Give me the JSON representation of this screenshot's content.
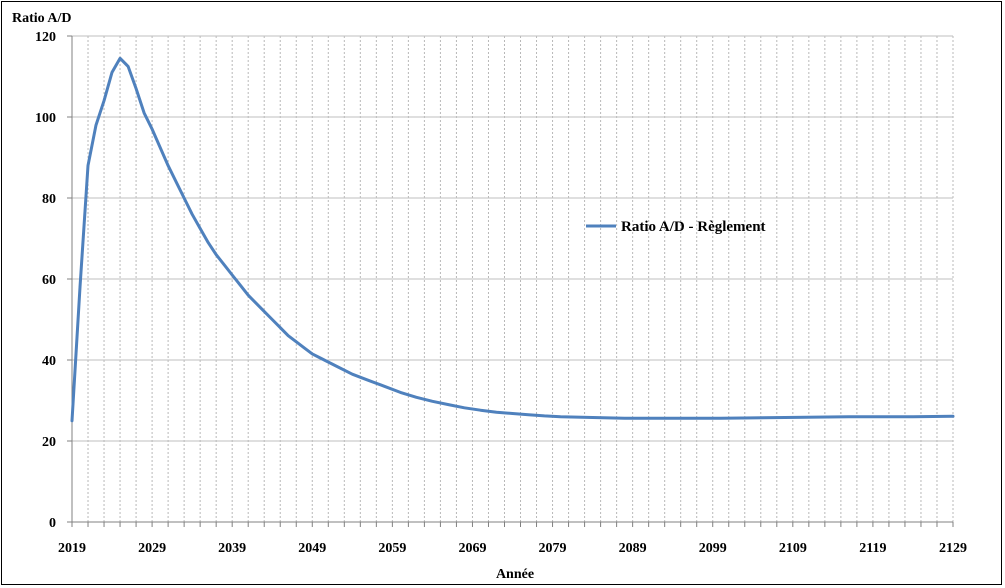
{
  "chart_data": {
    "type": "line",
    "title": "",
    "ylabel": "Ratio A/D",
    "xlabel": "Année",
    "xlim": [
      2019,
      2129
    ],
    "ylim": [
      0,
      120
    ],
    "x_ticks": [
      2019,
      2029,
      2039,
      2049,
      2059,
      2069,
      2079,
      2089,
      2099,
      2109,
      2119,
      2129
    ],
    "y_ticks": [
      0,
      20,
      40,
      60,
      80,
      100,
      120
    ],
    "grid": true,
    "legend_position": "center-right",
    "series": [
      {
        "name": "Ratio A/D - Règlement",
        "color": "#4F81BD",
        "x": [
          2019,
          2020,
          2021,
          2022,
          2023,
          2024,
          2025,
          2026,
          2027,
          2028,
          2029,
          2030,
          2031,
          2032,
          2033,
          2034,
          2035,
          2036,
          2037,
          2038,
          2039,
          2040,
          2041,
          2042,
          2043,
          2044,
          2045,
          2046,
          2047,
          2048,
          2049,
          2050,
          2052,
          2054,
          2056,
          2058,
          2060,
          2062,
          2064,
          2066,
          2068,
          2070,
          2072,
          2074,
          2076,
          2078,
          2080,
          2084,
          2088,
          2092,
          2096,
          2100,
          2104,
          2108,
          2112,
          2116,
          2120,
          2124,
          2129
        ],
        "y": [
          25,
          58,
          88,
          98,
          104,
          111,
          114.5,
          112.5,
          107,
          101,
          97,
          92.5,
          88,
          84,
          80,
          76,
          72.5,
          69,
          66,
          63.5,
          61,
          58.5,
          56,
          54,
          52,
          50,
          48,
          46,
          44.5,
          43,
          41.5,
          40.5,
          38.5,
          36.5,
          35,
          33.5,
          32,
          30.8,
          29.8,
          29,
          28.2,
          27.6,
          27.1,
          26.8,
          26.5,
          26.2,
          26,
          25.8,
          25.6,
          25.6,
          25.6,
          25.6,
          25.7,
          25.8,
          25.9,
          26,
          26,
          26,
          26.1
        ]
      }
    ]
  }
}
